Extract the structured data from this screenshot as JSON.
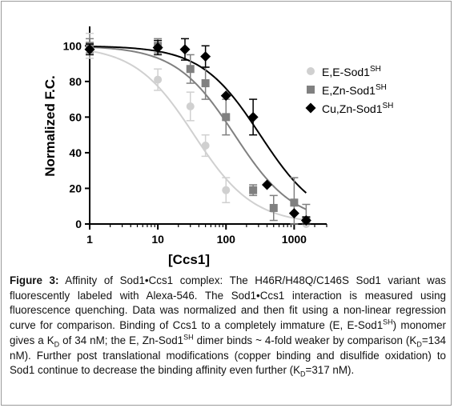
{
  "chart_data": {
    "type": "scatter",
    "ylabel": "Normalized F.C.",
    "xlabel": "[Ccs1]",
    "xscale": "log",
    "xlim": [
      1,
      3000
    ],
    "ylim": [
      0,
      110
    ],
    "xticks": [
      1,
      10,
      100,
      1000
    ],
    "xtick_labels": [
      "1",
      "10",
      "100",
      "1000"
    ],
    "yticks": [
      0,
      20,
      40,
      60,
      80,
      100
    ],
    "ytick_labels": [
      "0",
      "20",
      "40",
      "60",
      "80",
      "100"
    ],
    "legend_position": "right",
    "series": [
      {
        "name": "E,E-Sod1",
        "name_sup": "SH",
        "marker": "circle",
        "color": "#d0d0d0",
        "kd": 34,
        "x": [
          1,
          10,
          30,
          50,
          100,
          1500
        ],
        "y": [
          100,
          81,
          66,
          44,
          19,
          0
        ],
        "err": [
          7,
          6,
          8,
          6,
          7,
          3
        ]
      },
      {
        "name": "E,Zn-Sod1",
        "name_sup": "SH",
        "marker": "square",
        "color": "#808080",
        "kd": 134,
        "x": [
          1,
          10,
          30,
          50,
          100,
          250,
          500,
          1000,
          1500
        ],
        "y": [
          100,
          100,
          87,
          79,
          60,
          19,
          9,
          12,
          2
        ],
        "err": [
          4,
          4,
          8,
          9,
          10,
          3,
          7,
          14,
          9
        ]
      },
      {
        "name": "Cu,Zn-Sod1",
        "name_sup": "SH",
        "marker": "diamond",
        "color": "#000000",
        "kd": 317,
        "x": [
          1,
          10,
          25,
          50,
          100,
          250,
          400,
          1000,
          1500
        ],
        "y": [
          98,
          99,
          98,
          94,
          72,
          60,
          22,
          6,
          2
        ],
        "err": [
          3,
          4,
          6,
          6,
          0,
          10,
          0,
          0,
          2
        ]
      }
    ]
  },
  "caption": {
    "label": "Figure 3:",
    "p1": " Affinity of Sod1•Ccs1 complex: The H46R/H48Q/C146S Sod1 variant was fluorescently labeled with Alexa-546. The Sod1•Ccs1 interaction is measured using fluorescence quenching. Data was normalized and then fit using a non-linear regression curve for comparison. Binding of Ccs1 to a completely immature (E, E-Sod1",
    "sup1": "SH",
    "p2": ") monomer gives a K",
    "sub1": "D",
    "p3": " of 34 nM; the E, Zn-Sod1",
    "sup2": "SH",
    "p4": " dimer binds ~ 4-fold weaker by comparison (K",
    "sub2": "D",
    "p5": "=134 nM). Further post translational modifications (copper binding and disulfide oxidation) to Sod1 continue to decrease the binding affinity even further (K",
    "sub3": "D",
    "p6": "=317 nM)."
  }
}
